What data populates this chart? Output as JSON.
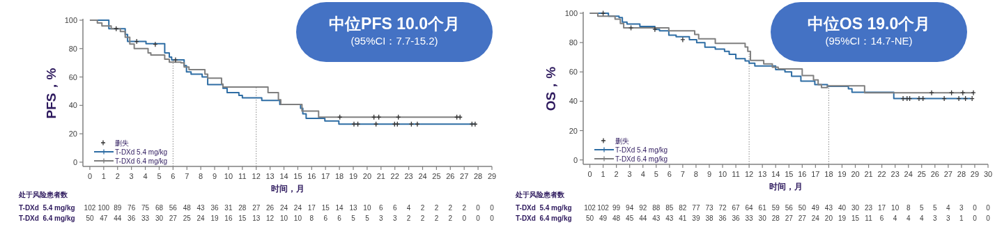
{
  "chart_data": [
    {
      "type": "step",
      "xlabel": "时间，月",
      "ylabel": "PFS，%",
      "xlim": [
        -0.5,
        29
      ],
      "ylim": [
        -3,
        100
      ],
      "xticks": [
        0,
        1,
        2,
        3,
        4,
        5,
        6,
        7,
        8,
        9,
        10,
        11,
        12,
        13,
        14,
        15,
        16,
        17,
        18,
        19,
        20,
        21,
        22,
        23,
        24,
        25,
        26,
        27,
        28,
        29
      ],
      "yticks": [
        0,
        20,
        40,
        60,
        80,
        100
      ],
      "legend": "bottom left",
      "annotations": [
        "中位PFS 10.0个月",
        "(95%CI：7.7-15.2)"
      ],
      "ref_lines": [
        {
          "axis": "x",
          "value": 6,
          "line_style": "dotted",
          "color": "#888888"
        },
        {
          "axis": "x",
          "value": 12,
          "line_style": "dotted",
          "color": "#888888"
        }
      ],
      "series": [
        {
          "name": "删失",
          "type": "scatter",
          "marker": "cross",
          "color": "#333333",
          "x": [
            3.38,
            4.72,
            6.18,
            19.05,
            19.33,
            20.64,
            21.98,
            22.18,
            23.19,
            23.62,
            27.56,
            27.79,
            1.9,
            18.03,
            20.49,
            20.84,
            22.25,
            26.47,
            26.7
          ],
          "values": [
            85,
            83,
            72,
            26.8,
            26.8,
            26.8,
            26.8,
            26.8,
            26.8,
            26.8,
            26.8,
            26.8,
            94,
            31.7,
            31.7,
            31.7,
            31.7,
            31.7,
            31.7
          ]
        },
        {
          "name": "T-DXd 5.4 mg/kg",
          "color": "#2e6da4",
          "x": [
            0,
            1.37,
            2.55,
            2.72,
            4.05,
            5.4,
            5.73,
            5.9,
            6.8,
            6.97,
            7.3,
            8.1,
            8.5,
            9.6,
            9.9,
            10.75,
            11.0,
            12.4,
            13.7,
            15.2,
            15.36,
            15.6,
            16.95,
            17.96,
            27.8
          ],
          "values": [
            100,
            94,
            90,
            85,
            83.5,
            77,
            74,
            72,
            68,
            63.6,
            62,
            60,
            54.6,
            52,
            49,
            47,
            45.3,
            43.5,
            40.7,
            38,
            34,
            30.9,
            29,
            26.8,
            26.8
          ]
        },
        {
          "name": "T-DXd 6.4 mg/kg",
          "color": "#7f7f7f",
          "x": [
            0,
            0.54,
            0.87,
            1.54,
            2.2,
            2.55,
            2.88,
            3.2,
            4.2,
            4.4,
            5.4,
            5.73,
            6.57,
            6.8,
            7.15,
            8.3,
            8.5,
            9.5,
            9.6,
            12.85,
            13.6,
            13.77,
            15.3,
            16.5,
            26.75
          ],
          "values": [
            100,
            98,
            96,
            94,
            92,
            88,
            83.2,
            80,
            77,
            75.5,
            72.5,
            70.5,
            70,
            67,
            65.2,
            62,
            59.2,
            55,
            52.9,
            49,
            44,
            40.7,
            36,
            31.7,
            31.7
          ]
        }
      ]
    },
    {
      "type": "heatmap",
      "title": "处于风险患者数",
      "data_labels": true,
      "categories": [
        null,
        null,
        null,
        null,
        null,
        null,
        null,
        null,
        null,
        null,
        null,
        null,
        null,
        null,
        null,
        null,
        null,
        null,
        null,
        null,
        null,
        null,
        null,
        null,
        null,
        null,
        null,
        null,
        null,
        null
      ],
      "y_categories": [
        "T-DXd  5.4 mg/kg",
        "T-DXd  6.4 mg/kg"
      ],
      "cells": [
        [
          102,
          100,
          89,
          76,
          75,
          68,
          56,
          48,
          43,
          36,
          31,
          28,
          27,
          26,
          24,
          24,
          17,
          15,
          14,
          13,
          10,
          6,
          6,
          4,
          2,
          2,
          2,
          2,
          0,
          0
        ],
        [
          50,
          47,
          44,
          36,
          33,
          30,
          27,
          25,
          24,
          19,
          16,
          15,
          13,
          12,
          10,
          10,
          8,
          6,
          6,
          5,
          5,
          3,
          3,
          2,
          2,
          2,
          2,
          0,
          0,
          0
        ]
      ]
    },
    {
      "type": "step",
      "xlabel": "时间，月",
      "ylabel": "OS，%",
      "xlim": [
        -0.5,
        30
      ],
      "ylim": [
        -3,
        100
      ],
      "xticks": [
        0,
        1,
        2,
        3,
        4,
        5,
        6,
        7,
        8,
        9,
        10,
        11,
        12,
        13,
        14,
        15,
        16,
        17,
        18,
        19,
        20,
        21,
        22,
        23,
        24,
        25,
        26,
        27,
        28,
        29,
        30
      ],
      "yticks": [
        0,
        20,
        40,
        60,
        80,
        100
      ],
      "legend": "bottom left",
      "annotations": [
        "中位OS 19.0个月",
        "(95%CI：14.7-NE)"
      ],
      "ref_lines": [
        {
          "axis": "x",
          "value": 12,
          "line_style": "dotted",
          "color": "#888888"
        },
        {
          "axis": "x",
          "value": 18,
          "line_style": "dotted",
          "color": "#888888"
        }
      ],
      "series": [
        {
          "name": "删失",
          "type": "scatter",
          "marker": "cross",
          "color": "#333333",
          "x": [
            1.0,
            7.0,
            23.6,
            23.9,
            24.1,
            24.8,
            25.1,
            26.7,
            27.8,
            28.3,
            28.8,
            3.1,
            4.9,
            25.75,
            27.25,
            28.1,
            28.9
          ],
          "values": [
            100,
            82,
            41.8,
            41.8,
            41.8,
            41.8,
            41.8,
            41.8,
            41.8,
            41.8,
            41.8,
            90,
            89,
            45.8,
            45.8,
            45.8,
            45.8
          ]
        },
        {
          "name": "T-DXd 5.4 mg/kg",
          "color": "#2e6da4",
          "x": [
            0,
            1.4,
            2.2,
            2.45,
            2.8,
            3.77,
            4.9,
            5.25,
            5.95,
            6.5,
            7.5,
            8.05,
            8.67,
            9.45,
            10.15,
            10.5,
            11.0,
            11.7,
            12.0,
            12.43,
            14.0,
            14.7,
            15.2,
            15.9,
            16.95,
            17.9,
            19.48,
            19.75,
            22.9,
            28.7
          ],
          "values": [
            100,
            98,
            97,
            94,
            92.6,
            91,
            89,
            88,
            85,
            84,
            82,
            80,
            76.9,
            75.5,
            74,
            72,
            69,
            67.5,
            66,
            64,
            61.5,
            60,
            57,
            53.7,
            51.3,
            50.2,
            48.5,
            46.1,
            41.8,
            41.8
          ]
        },
        {
          "name": "T-DXd 6.4 mg/kg",
          "color": "#7f7f7f",
          "x": [
            0,
            0.6,
            1.9,
            2.3,
            2.55,
            5.95,
            7.9,
            8.2,
            9.45,
            11.7,
            11.9,
            12.1,
            13.1,
            13.75,
            14.19,
            16.0,
            16.85,
            17.2,
            17.45,
            17.9,
            20.7,
            28.9
          ],
          "values": [
            100,
            98,
            96,
            93,
            90,
            88,
            85.5,
            82.5,
            79.5,
            77,
            74,
            67.9,
            65.5,
            63.2,
            62,
            57.5,
            54.5,
            51.3,
            49.3,
            50.5,
            45.8,
            45.8
          ]
        }
      ]
    },
    {
      "type": "heatmap",
      "title": "处于风险患者数",
      "data_labels": true,
      "categories": [
        null,
        null,
        null,
        null,
        null,
        null,
        null,
        null,
        null,
        null,
        null,
        null,
        null,
        null,
        null,
        null,
        null,
        null,
        null,
        null,
        null,
        null,
        null,
        null,
        null,
        null,
        null,
        null,
        null,
        null,
        null
      ],
      "y_categories": [
        "T-DXd  5.4 mg/kg",
        "T-DXd  6.4 mg/kg"
      ],
      "cells": [
        [
          102,
          102,
          99,
          94,
          92,
          88,
          85,
          82,
          77,
          73,
          72,
          67,
          64,
          61,
          59,
          56,
          50,
          49,
          43,
          40,
          30,
          23,
          17,
          10,
          8,
          5,
          5,
          4,
          3,
          0,
          0
        ],
        [
          50,
          49,
          48,
          45,
          44,
          43,
          43,
          41,
          39,
          38,
          36,
          36,
          33,
          30,
          28,
          27,
          27,
          24,
          20,
          19,
          15,
          11,
          6,
          4,
          4,
          4,
          3,
          3,
          1,
          0,
          0
        ]
      ]
    }
  ]
}
